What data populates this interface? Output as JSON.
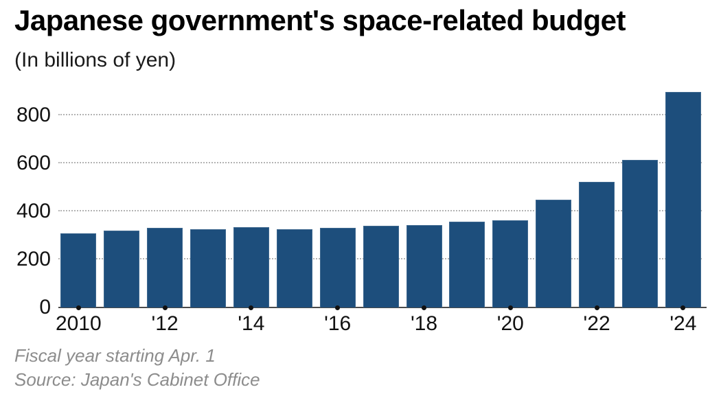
{
  "header": {
    "title": "Japanese government's space-related budget",
    "subtitle": "(In billions of yen)"
  },
  "footer": {
    "note": "Fiscal year starting Apr. 1",
    "source": "Source: Japan's Cabinet Office"
  },
  "colors": {
    "bar": "#1d4e7c",
    "grid": "#b3b3b3",
    "axis": "#4a4a4a",
    "tick": "#111111",
    "text": "#111111",
    "footer_text": "#8c8c8c"
  },
  "chart_data": {
    "type": "bar",
    "title": "Japanese government's space-related budget",
    "subtitle": "(In billions of yen)",
    "xlabel": "",
    "ylabel": "",
    "categories": [
      "2010",
      "2011",
      "2012",
      "2013",
      "2014",
      "2015",
      "2016",
      "2017",
      "2018",
      "2019",
      "2020",
      "2021",
      "2022",
      "2023",
      "2024"
    ],
    "values": [
      310,
      320,
      332,
      325,
      333,
      327,
      331,
      339,
      342,
      358,
      364,
      449,
      523,
      613,
      898
    ],
    "ylim": [
      0,
      940
    ],
    "yticks": [
      0,
      200,
      400,
      600,
      800
    ],
    "x_ticks": [
      {
        "i": 0,
        "label": "2010"
      },
      {
        "i": 2,
        "label": "'12"
      },
      {
        "i": 4,
        "label": "'14"
      },
      {
        "i": 6,
        "label": "'16"
      },
      {
        "i": 8,
        "label": "'18"
      },
      {
        "i": 10,
        "label": "'20"
      },
      {
        "i": 12,
        "label": "'22"
      },
      {
        "i": 14,
        "label": "'24"
      }
    ],
    "grid": "horizontal-dotted",
    "legend": "none",
    "notes": [
      "Fiscal year starting Apr. 1",
      "Source: Japan's Cabinet Office"
    ]
  }
}
